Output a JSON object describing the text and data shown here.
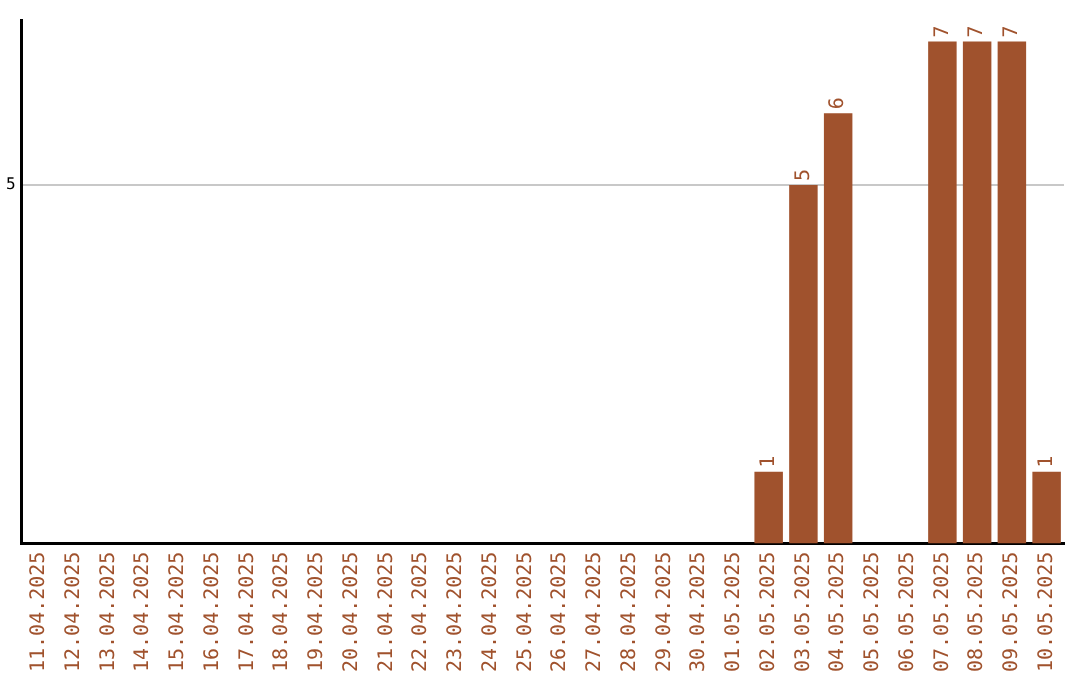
{
  "chart_data": {
    "type": "bar",
    "categories": [
      "11.04.2025",
      "12.04.2025",
      "13.04.2025",
      "14.04.2025",
      "15.04.2025",
      "16.04.2025",
      "17.04.2025",
      "18.04.2025",
      "19.04.2025",
      "20.04.2025",
      "21.04.2025",
      "22.04.2025",
      "23.04.2025",
      "24.04.2025",
      "25.04.2025",
      "26.04.2025",
      "27.04.2025",
      "28.04.2025",
      "29.04.2025",
      "30.04.2025",
      "01.05.2025",
      "02.05.2025",
      "03.05.2025",
      "04.05.2025",
      "05.05.2025",
      "06.05.2025",
      "07.05.2025",
      "08.05.2025",
      "09.05.2025",
      "10.05.2025"
    ],
    "values": [
      null,
      null,
      null,
      null,
      null,
      null,
      null,
      null,
      null,
      null,
      null,
      null,
      null,
      null,
      null,
      null,
      null,
      null,
      null,
      null,
      null,
      1,
      5,
      6,
      null,
      null,
      7,
      7,
      7,
      1
    ],
    "data_labels": true,
    "color": "#a0522d",
    "ylim": [
      0,
      7.3
    ],
    "yticks": [
      5
    ],
    "grid": "y",
    "legend": false
  }
}
